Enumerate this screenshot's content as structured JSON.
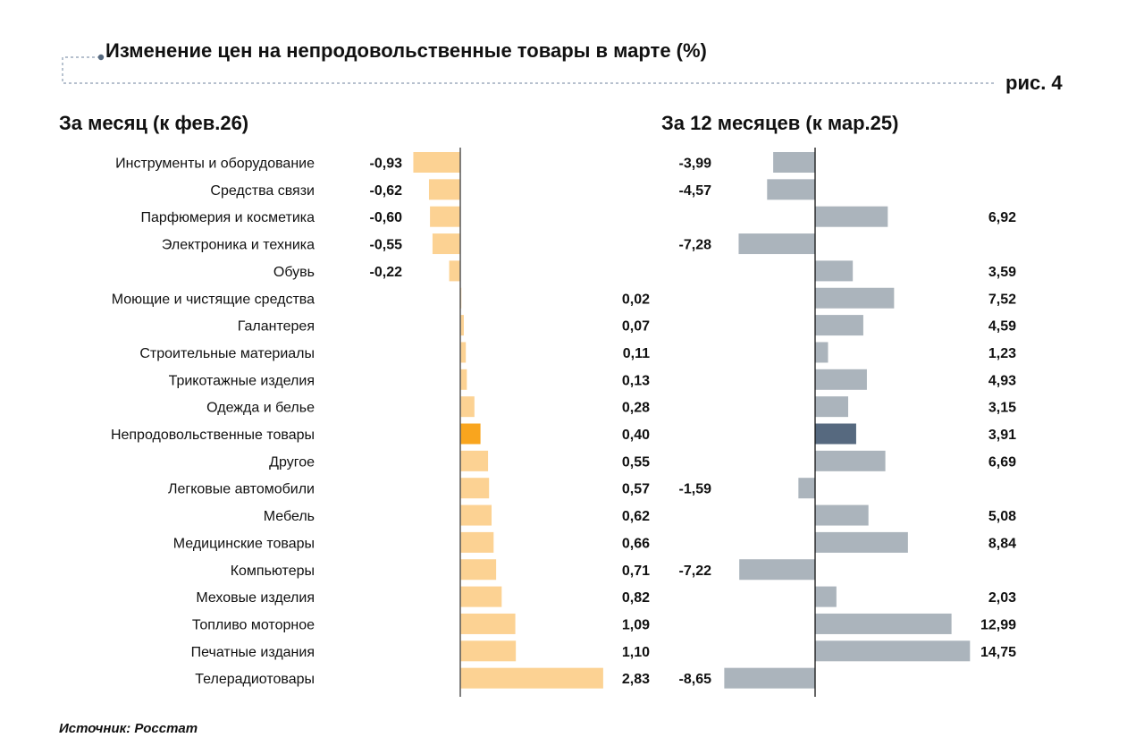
{
  "title": "Изменение цен на непродовольственные товары в марте (%)",
  "figure_label": "рис. 4",
  "source": "Источник: Росстат",
  "colors": {
    "left_bar": "#FCD293",
    "left_highlight": "#F9A51E",
    "right_bar": "#ABB4BC",
    "right_highlight": "#56697F",
    "axis": "#333333",
    "deco": "#8A9BB0"
  },
  "chart_data": [
    {
      "type": "bar",
      "orientation": "horizontal",
      "title": "За месяц (к фев.26)",
      "categories": [
        "Инструменты и оборудование",
        "Средства связи",
        "Парфюмерия и косметика",
        "Электроника и техника",
        "Обувь",
        "Моющие и чистящие средства",
        "Галантерея",
        "Строительные материалы",
        "Трикотажные изделия",
        "Одежда и белье",
        "Непродовольственные товары",
        "Другое",
        "Легковые автомобили",
        "Мебель",
        "Медицинские товары",
        "Компьютеры",
        "Меховые изделия",
        "Топливо моторное",
        "Печатные издания",
        "Телерадиотовары"
      ],
      "values": [
        -0.93,
        -0.62,
        -0.6,
        -0.55,
        -0.22,
        0.02,
        0.07,
        0.11,
        0.13,
        0.28,
        0.4,
        0.55,
        0.57,
        0.62,
        0.66,
        0.71,
        0.82,
        1.09,
        1.1,
        2.83
      ],
      "labels": [
        "-0,93",
        "-0,62",
        "-0,60",
        "-0,55",
        "-0,22",
        "0,02",
        "0,07",
        "0,11",
        "0,13",
        "0,28",
        "0,40",
        "0,55",
        "0,57",
        "0,62",
        "0,66",
        "0,71",
        "0,82",
        "1,09",
        "1,10",
        "2,83"
      ],
      "highlight": "Непродовольственные товары",
      "unit": "%"
    },
    {
      "type": "bar",
      "orientation": "horizontal",
      "title": "За 12 месяцев (к мар.25)",
      "categories": [
        "Инструменты и оборудование",
        "Средства связи",
        "Парфюмерия и косметика",
        "Электроника и техника",
        "Обувь",
        "Моющие и чистящие средства",
        "Галантерея",
        "Строительные материалы",
        "Трикотажные изделия",
        "Одежда и белье",
        "Непродовольственные товары",
        "Другое",
        "Легковые автомобили",
        "Мебель",
        "Медицинские товары",
        "Компьютеры",
        "Меховые изделия",
        "Топливо моторное",
        "Печатные издания",
        "Телерадиотовары"
      ],
      "values": [
        -3.99,
        -4.57,
        6.92,
        -7.28,
        3.59,
        7.52,
        4.59,
        1.23,
        4.93,
        3.15,
        3.91,
        6.69,
        -1.59,
        5.08,
        8.84,
        -7.22,
        2.03,
        12.99,
        14.75,
        -8.65
      ],
      "labels": [
        "-3,99",
        "-4,57",
        "6,92",
        "-7,28",
        "3,59",
        "7,52",
        "4,59",
        "1,23",
        "4,93",
        "3,15",
        "3,91",
        "6,69",
        "-1,59",
        "5,08",
        "8,84",
        "-7,22",
        "2,03",
        "12,99",
        "14,75",
        "-8,65"
      ],
      "highlight": "Непродовольственные товары",
      "unit": "%"
    }
  ]
}
